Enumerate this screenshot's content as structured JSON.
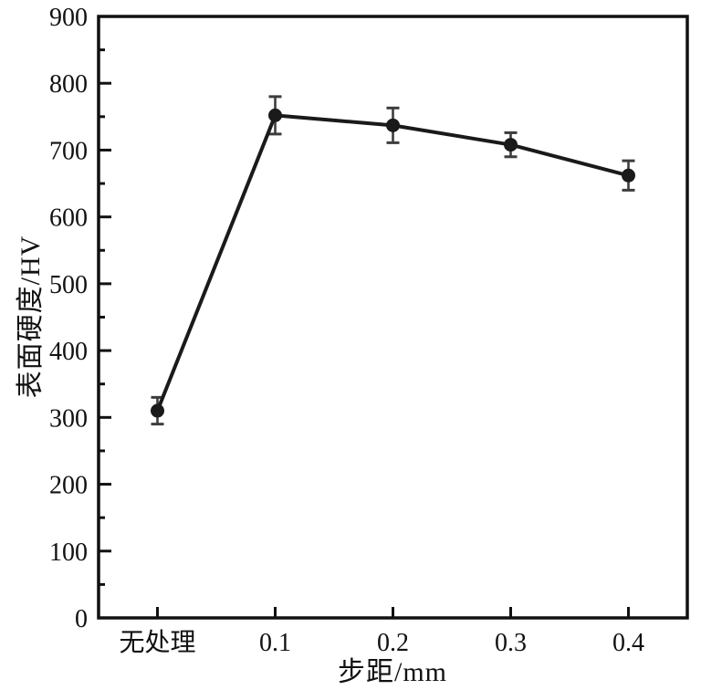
{
  "chart_data": {
    "type": "line",
    "title": "",
    "categories": [
      "无处理",
      "0.1",
      "0.2",
      "0.3",
      "0.4"
    ],
    "series": [
      {
        "name": "表面硬度",
        "values": [
          310,
          752,
          737,
          708,
          662
        ],
        "errors": [
          20,
          28,
          26,
          18,
          22
        ]
      }
    ],
    "xlabel": "步距/mm",
    "ylabel": "表面硬度/HV",
    "ylim": [
      0,
      900
    ],
    "ytick_step": 100,
    "yminor_step": 50,
    "grid": false,
    "legend": "none",
    "marker": "circle",
    "colors": {
      "line": "#1a1a1a",
      "marker": "#1a1a1a",
      "errorbar": "#3d3d3d",
      "axis": "#111111",
      "tick_label": "#111111",
      "background": "#ffffff"
    }
  }
}
